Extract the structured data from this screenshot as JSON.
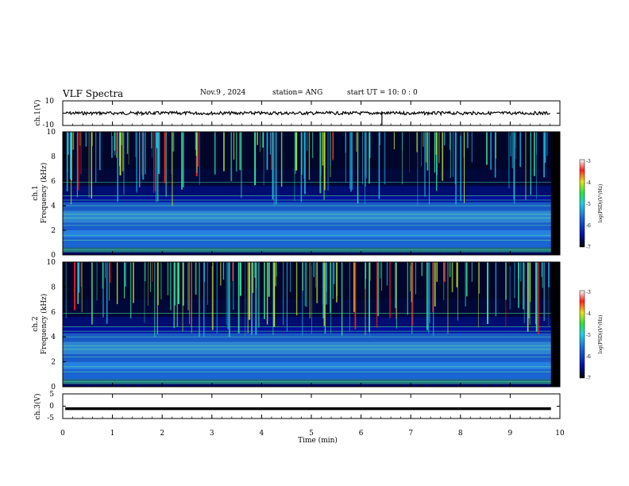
{
  "header": {
    "title": "VLF Spectra",
    "date": "Nov.9 , 2024",
    "station": "station= ANG",
    "start": "start UT = 10: 0 : 0"
  },
  "chart_data": [
    {
      "type": "line",
      "title": "",
      "ylabel": "ch.1(V)",
      "xlim": [
        0,
        10
      ],
      "ylim": [
        -10,
        10
      ],
      "yticks": [
        "10",
        "-10"
      ],
      "series": [
        {
          "baseline": 0,
          "amplitude_note": "noisy band near 0 V with a single spike near 6.4 min"
        }
      ]
    },
    {
      "type": "heatmap",
      "ylabel": "ch.1 Frequency (kHz)",
      "xlim": [
        0,
        10
      ],
      "ylim": [
        0,
        10
      ],
      "yticks": [
        "0",
        "2",
        "4",
        "6",
        "8",
        "10"
      ],
      "colorbar": {
        "label": "log(PSD)(V²/Hz)",
        "min": -7,
        "max": -3,
        "ticks": [
          "-3",
          "-4",
          "-5",
          "-6",
          "-7"
        ]
      }
    },
    {
      "type": "heatmap",
      "ylabel": "ch.2 Frequency (kHz)",
      "xlim": [
        0,
        10
      ],
      "ylim": [
        0,
        10
      ],
      "yticks": [
        "0",
        "2",
        "4",
        "6",
        "8",
        "10"
      ],
      "colorbar": {
        "label": "log(PSD)(V²/Hz)",
        "min": -7,
        "max": -3,
        "ticks": [
          "-3",
          "-4",
          "-5",
          "-6",
          "-7"
        ]
      }
    },
    {
      "type": "line",
      "ylabel": "ch.3(V)",
      "xlim": [
        0,
        10
      ],
      "ylim": [
        -5,
        5
      ],
      "yticks": [
        "5",
        "0",
        "-5"
      ],
      "series": [
        {
          "baseline": -1,
          "amplitude_note": "thick flat trace near -1 V"
        }
      ]
    }
  ],
  "x_axis": {
    "label": "Time (min)",
    "ticks": [
      "0",
      "1",
      "2",
      "3",
      "4",
      "5",
      "6",
      "7",
      "8",
      "9",
      "10"
    ]
  },
  "panel_labels": {
    "ch1_wave": "ch.1(V)",
    "ch1_freq_a": "ch.1",
    "ch1_freq_b": "Frequency (kHz)",
    "ch2_freq_a": "ch.2",
    "ch2_freq_b": "Frequency (kHz)",
    "ch3_wave": "ch.3(V)",
    "colorbar": "log(PSD)(V²/Hz)"
  },
  "colors": {
    "background": "#000060",
    "low": "#0010a0",
    "mid": "#1e6fe0",
    "high": "#3fe0a0",
    "peak": "#ff2020"
  }
}
